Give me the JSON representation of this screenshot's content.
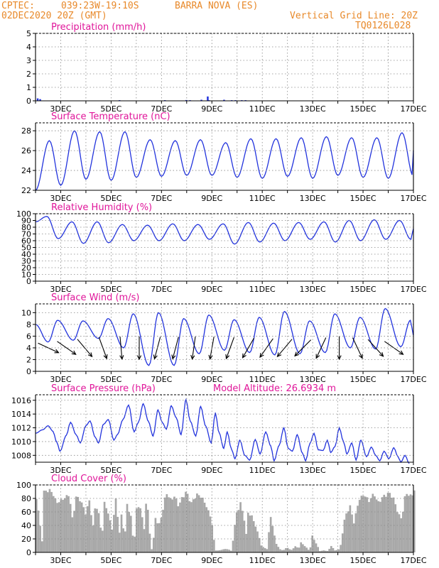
{
  "header": {
    "source": "CPTEC:",
    "coords": "039:23W-19:10S",
    "station": "BARRA NOVA (ES)",
    "datetime": "02DEC2020 20Z (GMT)",
    "grid_note": "Vertical Grid Line: 20Z",
    "run_code": "TQ0126L028"
  },
  "colors": {
    "header": "#e8892a",
    "title": "#e0169a",
    "line": "#2233dd",
    "cloud": "#a8a8a8",
    "axis": "#000000"
  },
  "chart_data": [
    {
      "type": "bar",
      "title": "Precipitation (mm/h)",
      "ylim": [
        0,
        5
      ],
      "yticks": [
        0,
        1,
        2,
        3,
        4,
        5
      ],
      "xticks": [
        "3DEC",
        "5DEC",
        "7DEC",
        "9DEC",
        "11DEC",
        "13DEC",
        "15DEC",
        "17DEC"
      ],
      "bars": [
        [
          0.1,
          0.18
        ],
        [
          0.3,
          0.12
        ],
        [
          6.6,
          0.05
        ],
        [
          10.2,
          0.05
        ],
        [
          11.9,
          0.06
        ],
        [
          12.2,
          0.05
        ],
        [
          13.1,
          0.08
        ],
        [
          13.6,
          0.32
        ],
        [
          13.7,
          0.05
        ],
        [
          14.9,
          0.08
        ],
        [
          15.5,
          0.05
        ],
        [
          15.8,
          0.05
        ],
        [
          16.3,
          0.05
        ],
        [
          16.6,
          0.05
        ]
      ]
    },
    {
      "type": "line",
      "title": "Surface Temperature (nC)",
      "ylim": [
        22,
        28.8
      ],
      "yticks": [
        22,
        24,
        26,
        28
      ],
      "xticks": [
        "3DEC",
        "5DEC",
        "7DEC",
        "9DEC",
        "11DEC",
        "13DEC",
        "15DEC",
        "17DEC"
      ],
      "diurnal": {
        "min_day": [
          22.5,
          23.1,
          23.0,
          23.3,
          23.4,
          23.5,
          23.5,
          23.3,
          23.2,
          23.4,
          23.2,
          23.5,
          23.3,
          23.2,
          23.4
        ],
        "max_day": [
          27.0,
          28.0,
          27.9,
          27.9,
          27.1,
          27.0,
          27.1,
          26.8,
          27.2,
          27.2,
          27.3,
          27.4,
          27.3,
          27.3,
          27.8
        ]
      },
      "start": 22.0,
      "end": 26.0
    },
    {
      "type": "line",
      "title": "Relative Humidity (%)",
      "ylim": [
        0,
        100
      ],
      "yticks": [
        0,
        10,
        20,
        30,
        40,
        50,
        60,
        70,
        80,
        90,
        100
      ],
      "xticks": [
        "3DEC",
        "5DEC",
        "7DEC",
        "9DEC",
        "11DEC",
        "13DEC",
        "15DEC",
        "17DEC"
      ],
      "diurnal": {
        "max_day": [
          96,
          88,
          88,
          84,
          83,
          85,
          84,
          85,
          87,
          86,
          87,
          88,
          90,
          91,
          90
        ],
        "min_day": [
          63,
          56,
          57,
          60,
          60,
          60,
          62,
          55,
          58,
          60,
          62,
          58,
          60,
          62,
          62
        ]
      },
      "start": 88,
      "end": 78
    },
    {
      "type": "line",
      "title": "Surface Wind (m/s)",
      "ylim": [
        0,
        11.5
      ],
      "yticks": [
        0,
        2,
        4,
        6,
        8,
        10
      ],
      "xticks": [
        "3DEC",
        "5DEC",
        "7DEC",
        "9DEC",
        "11DEC",
        "13DEC",
        "15DEC",
        "17DEC"
      ],
      "peaks": [
        8.7,
        8.6,
        9.0,
        9.8,
        10.0,
        9.0,
        9.6,
        8.8,
        9.2,
        10.2,
        8.6,
        9.8,
        9.2,
        10.7,
        8.7
      ],
      "troughs": [
        5.0,
        5.3,
        5.6,
        4.0,
        1.0,
        1.0,
        3.0,
        3.6,
        3.2,
        2.8,
        3.0,
        3.2,
        4.0,
        3.8,
        4.2
      ],
      "start": 8.0,
      "end": 6.2,
      "arrows_deg": [
        295,
        305,
        320,
        340,
        355,
        0,
        15,
        15,
        8,
        10,
        20,
        30,
        35,
        40,
        45,
        25,
        0,
        335,
        318,
        305
      ]
    },
    {
      "type": "line",
      "title": "Surface Pressure (hPa)",
      "annotation": "Model Altitude: 26.6934 m",
      "ylim": [
        1007,
        1016.8
      ],
      "yticks": [
        1008,
        1010,
        1012,
        1014,
        1016
      ],
      "xticks": [
        "3DEC",
        "5DEC",
        "7DEC",
        "9DEC",
        "11DEC",
        "13DEC",
        "15DEC",
        "17DEC"
      ],
      "points": [
        [
          0,
          1011.2
        ],
        [
          0.5,
          1011.7
        ],
        [
          0.9,
          1012.3
        ],
        [
          1.25,
          1011.5
        ],
        [
          1.5,
          1010.0
        ],
        [
          1.75,
          1008.6
        ],
        [
          2.2,
          1010.9
        ],
        [
          2.5,
          1012.8
        ],
        [
          2.9,
          1011.0
        ],
        [
          3.2,
          1009.8
        ],
        [
          3.6,
          1012.3
        ],
        [
          3.9,
          1013.0
        ],
        [
          4.25,
          1010.7
        ],
        [
          4.5,
          1009.8
        ],
        [
          4.85,
          1012.5
        ],
        [
          5.2,
          1013.2
        ],
        [
          5.6,
          1010.2
        ],
        [
          5.85,
          1011.0
        ],
        [
          6.25,
          1013.2
        ],
        [
          6.65,
          1015.3
        ],
        [
          7.05,
          1011.4
        ],
        [
          7.35,
          1012.8
        ],
        [
          7.7,
          1015.5
        ],
        [
          8.05,
          1013.0
        ],
        [
          8.4,
          1010.8
        ],
        [
          8.75,
          1014.6
        ],
        [
          9.05,
          1012.8
        ],
        [
          9.35,
          1011.8
        ],
        [
          9.7,
          1015.2
        ],
        [
          10.05,
          1013.5
        ],
        [
          10.4,
          1011.0
        ],
        [
          10.75,
          1016.1
        ],
        [
          11.05,
          1013.0
        ],
        [
          11.45,
          1010.8
        ],
        [
          11.8,
          1015.1
        ],
        [
          12.15,
          1012.3
        ],
        [
          12.55,
          1009.8
        ],
        [
          12.85,
          1014.2
        ],
        [
          13.1,
          1011.4
        ],
        [
          13.45,
          1009.0
        ],
        [
          13.7,
          1011.4
        ],
        [
          14.0,
          1008.9
        ],
        [
          14.25,
          1007.5
        ],
        [
          14.6,
          1010.2
        ],
        [
          14.95,
          1008.0
        ],
        [
          15.3,
          1007.3
        ],
        [
          15.7,
          1010.3
        ],
        [
          16.05,
          1008.2
        ],
        [
          16.45,
          1011.4
        ],
        [
          16.8,
          1009.4
        ],
        [
          17.05,
          1007.2
        ],
        [
          17.4,
          1009.4
        ],
        [
          17.75,
          1012.0
        ],
        [
          18.05,
          1009.0
        ],
        [
          18.35,
          1008.6
        ],
        [
          18.7,
          1011.0
        ],
        [
          19.05,
          1008.4
        ],
        [
          19.3,
          1007.2
        ],
        [
          19.6,
          1009.7
        ],
        [
          19.9,
          1011.2
        ],
        [
          20.2,
          1008.8
        ],
        [
          20.55,
          1008.7
        ],
        [
          20.85,
          1010.2
        ],
        [
          21.1,
          1008.4
        ],
        [
          21.4,
          1009.3
        ],
        [
          21.7,
          1012.0
        ],
        [
          22.0,
          1010.0
        ],
        [
          22.25,
          1008.2
        ],
        [
          22.6,
          1009.8
        ],
        [
          22.9,
          1007.3
        ],
        [
          23.25,
          1010.2
        ],
        [
          23.65,
          1007.8
        ],
        [
          24.0,
          1009.2
        ],
        [
          24.3,
          1008.0
        ],
        [
          24.6,
          1007.2
        ],
        [
          24.9,
          1008.6
        ],
        [
          25.25,
          1007.5
        ],
        [
          25.6,
          1009.1
        ],
        [
          25.9,
          1007.8
        ],
        [
          26.1,
          1007.0
        ],
        [
          26.4,
          1008.0
        ],
        [
          26.7,
          1006.8
        ]
      ]
    },
    {
      "type": "area",
      "title": "Cloud Cover (%)",
      "ylim": [
        0,
        100
      ],
      "yticks": [
        0,
        20,
        40,
        60,
        80,
        100
      ],
      "xticks": [
        "3DEC",
        "5DEC",
        "7DEC",
        "9DEC",
        "11DEC",
        "13DEC",
        "15DEC",
        "17DEC"
      ],
      "knots": [
        [
          0,
          85
        ],
        [
          0.5,
          10
        ],
        [
          0.55,
          85
        ],
        [
          0.6,
          92
        ],
        [
          1.0,
          95
        ],
        [
          1.3,
          90
        ],
        [
          1.6,
          75
        ],
        [
          2.2,
          82
        ],
        [
          2.6,
          88
        ],
        [
          2.9,
          45
        ],
        [
          3.1,
          85
        ],
        [
          3.5,
          80
        ],
        [
          3.9,
          60
        ],
        [
          4.2,
          78
        ],
        [
          4.5,
          40
        ],
        [
          4.7,
          75
        ],
        [
          5.0,
          55
        ],
        [
          5.2,
          20
        ],
        [
          5.4,
          75
        ],
        [
          5.7,
          60
        ],
        [
          6.0,
          35
        ],
        [
          6.3,
          80
        ],
        [
          6.6,
          30
        ],
        [
          6.8,
          65
        ],
        [
          7.0,
          10
        ],
        [
          7.15,
          75
        ],
        [
          7.5,
          55
        ],
        [
          7.75,
          5
        ],
        [
          7.9,
          65
        ],
        [
          8.25,
          70
        ],
        [
          8.55,
          35
        ],
        [
          8.6,
          78
        ],
        [
          8.8,
          75
        ],
        [
          9.1,
          5
        ],
        [
          9.25,
          5
        ],
        [
          9.4,
          55
        ],
        [
          9.7,
          40
        ],
        [
          10.0,
          60
        ],
        [
          10.3,
          92
        ],
        [
          10.6,
          80
        ],
        [
          11.0,
          85
        ],
        [
          11.3,
          70
        ],
        [
          11.6,
          85
        ],
        [
          11.9,
          92
        ],
        [
          12.3,
          75
        ],
        [
          12.7,
          88
        ],
        [
          13.1,
          85
        ],
        [
          13.5,
          70
        ],
        [
          13.9,
          50
        ],
        [
          14.2,
          3
        ],
        [
          14.5,
          3
        ],
        [
          14.9,
          5
        ],
        [
          15.2,
          5
        ],
        [
          15.5,
          2
        ],
        [
          15.7,
          35
        ],
        [
          15.9,
          60
        ],
        [
          16.2,
          75
        ],
        [
          16.5,
          50
        ],
        [
          16.7,
          20
        ],
        [
          16.8,
          60
        ],
        [
          17.1,
          55
        ],
        [
          17.4,
          40
        ],
        [
          17.7,
          22
        ],
        [
          17.95,
          3
        ],
        [
          18.0,
          8
        ],
        [
          18.3,
          5
        ],
        [
          18.6,
          55
        ],
        [
          19.0,
          15
        ],
        [
          19.3,
          5
        ],
        [
          19.6,
          3
        ],
        [
          19.9,
          8
        ],
        [
          20.2,
          3
        ],
        [
          20.6,
          10
        ],
        [
          20.8,
          5
        ],
        [
          21.0,
          15
        ],
        [
          21.4,
          8
        ],
        [
          21.7,
          2
        ],
        [
          21.9,
          25
        ],
        [
          22.3,
          10
        ],
        [
          22.5,
          2
        ],
        [
          22.8,
          3
        ],
        [
          23.15,
          2
        ],
        [
          23.4,
          10
        ],
        [
          23.7,
          3
        ],
        [
          24.1,
          5
        ],
        [
          24.5,
          55
        ],
        [
          24.9,
          70
        ],
        [
          25.2,
          45
        ],
        [
          25.6,
          80
        ],
        [
          26.0,
          88
        ],
        [
          26.4,
          78
        ],
        [
          26.8,
          90
        ],
        [
          27.1,
          75
        ],
        [
          27.4,
          82
        ],
        [
          27.7,
          88
        ],
        [
          28.0,
          90
        ],
        [
          28.3,
          85
        ],
        [
          28.7,
          60
        ],
        [
          29.0,
          50
        ],
        [
          29.3,
          90
        ],
        [
          29.8,
          85
        ],
        [
          30.0,
          95
        ]
      ]
    }
  ]
}
